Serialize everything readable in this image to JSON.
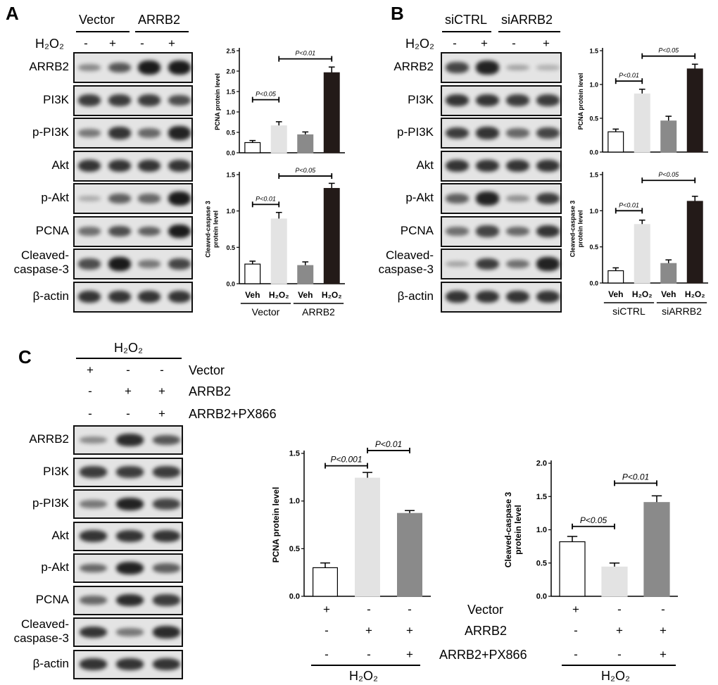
{
  "panels": {
    "A": {
      "letter": "A",
      "groups": [
        "Vector",
        "ARRB2"
      ],
      "treatment": "H₂O₂",
      "signs": [
        "-",
        "+",
        "-",
        "+"
      ],
      "blots": [
        {
          "label": "ARRB2",
          "intensity": [
            0.35,
            0.65,
            1.0,
            1.0
          ]
        },
        {
          "label": "PI3K",
          "intensity": [
            0.8,
            0.8,
            0.8,
            0.7
          ]
        },
        {
          "label": "p-PI3K",
          "intensity": [
            0.45,
            0.85,
            0.55,
            0.95
          ]
        },
        {
          "label": "Akt",
          "intensity": [
            0.85,
            0.85,
            0.85,
            0.85
          ]
        },
        {
          "label": "p-Akt",
          "intensity": [
            0.15,
            0.6,
            0.55,
            1.0
          ]
        },
        {
          "label": "PCNA",
          "intensity": [
            0.5,
            0.7,
            0.6,
            1.0
          ]
        },
        {
          "label": "Cleaved-\ncaspase-3",
          "intensity": [
            0.7,
            1.0,
            0.45,
            0.75
          ]
        },
        {
          "label": "β-actin",
          "intensity": [
            0.85,
            0.85,
            0.85,
            0.85
          ]
        }
      ]
    },
    "B": {
      "letter": "B",
      "groups": [
        "siCTRL",
        "siARRB2"
      ],
      "treatment": "H₂O₂",
      "signs": [
        "-",
        "+",
        "-",
        "+"
      ],
      "blots": [
        {
          "label": "ARRB2",
          "intensity": [
            0.75,
            0.95,
            0.2,
            0.12
          ]
        },
        {
          "label": "PI3K",
          "intensity": [
            0.85,
            0.85,
            0.8,
            0.8
          ]
        },
        {
          "label": "p-PI3K",
          "intensity": [
            0.8,
            0.85,
            0.55,
            0.75
          ]
        },
        {
          "label": "Akt",
          "intensity": [
            0.85,
            0.85,
            0.85,
            0.85
          ]
        },
        {
          "label": "p-Akt",
          "intensity": [
            0.6,
            0.95,
            0.3,
            0.8
          ]
        },
        {
          "label": "PCNA",
          "intensity": [
            0.5,
            0.75,
            0.55,
            0.85
          ]
        },
        {
          "label": "Cleaved-\ncaspase-3",
          "intensity": [
            0.2,
            0.8,
            0.5,
            0.95
          ]
        },
        {
          "label": "β-actin",
          "intensity": [
            0.85,
            0.85,
            0.85,
            0.85
          ]
        }
      ]
    },
    "C": {
      "letter": "C",
      "treatment": "H₂O₂",
      "rows": [
        {
          "label": "Vector",
          "signs": [
            "+",
            "-",
            "-"
          ]
        },
        {
          "label": "ARRB2",
          "signs": [
            "-",
            "+",
            "+"
          ]
        },
        {
          "label": "ARRB2+PX866",
          "signs": [
            "-",
            "-",
            "+"
          ]
        }
      ],
      "blots": [
        {
          "label": "ARRB2",
          "intensity": [
            0.35,
            0.9,
            0.65
          ]
        },
        {
          "label": "PI3K",
          "intensity": [
            0.8,
            0.8,
            0.8
          ]
        },
        {
          "label": "p-PI3K",
          "intensity": [
            0.45,
            0.95,
            0.75
          ]
        },
        {
          "label": "Akt",
          "intensity": [
            0.85,
            0.85,
            0.85
          ]
        },
        {
          "label": "p-Akt",
          "intensity": [
            0.55,
            0.95,
            0.6
          ]
        },
        {
          "label": "PCNA",
          "intensity": [
            0.55,
            0.9,
            0.8
          ]
        },
        {
          "label": "Cleaved-\ncaspase-3",
          "intensity": [
            0.85,
            0.45,
            0.9
          ]
        },
        {
          "label": "β-actin",
          "intensity": [
            0.85,
            0.85,
            0.85
          ]
        }
      ]
    }
  },
  "chart_data": [
    {
      "id": "A-PCNA",
      "type": "bar",
      "ylabel": "PCNA protein level",
      "ylim": [
        0,
        2.5
      ],
      "yticks": [
        "0.0",
        "0.5",
        "1.0",
        "1.5",
        "2.0",
        "2.5"
      ],
      "categories": [
        "Veh",
        "H₂O₂",
        "Veh",
        "H₂O₂"
      ],
      "values": [
        0.25,
        0.66,
        0.44,
        1.96
      ],
      "errors": [
        0.05,
        0.1,
        0.07,
        0.14
      ],
      "colors": [
        "#ffffff",
        "#e3e3e3",
        "#8a8a8a",
        "#231a18"
      ],
      "annotations": [
        {
          "text": "P<0.05",
          "from": 0,
          "to": 1,
          "y": 1.3
        },
        {
          "text": "P<0.01",
          "from": 1,
          "to": 3,
          "y": 2.3
        }
      ],
      "showXLabels": false
    },
    {
      "id": "A-Casp",
      "type": "bar",
      "ylabel": "Cleaved-caspase 3\nprotein level",
      "ylim": [
        0,
        1.5
      ],
      "yticks": [
        "0.0",
        "0.5",
        "1.0",
        "1.5"
      ],
      "categories": [
        "Veh",
        "H₂O₂",
        "Veh",
        "H₂O₂"
      ],
      "groups": [
        "Vector",
        "ARRB2"
      ],
      "values": [
        0.27,
        0.89,
        0.25,
        1.31
      ],
      "errors": [
        0.04,
        0.09,
        0.05,
        0.07
      ],
      "colors": [
        "#ffffff",
        "#e3e3e3",
        "#8a8a8a",
        "#231a18"
      ],
      "annotations": [
        {
          "text": "P<0.01",
          "from": 0,
          "to": 1,
          "y": 1.09
        },
        {
          "text": "P<0.05",
          "from": 1,
          "to": 3,
          "y": 1.48
        }
      ],
      "showXLabels": true
    },
    {
      "id": "B-PCNA",
      "type": "bar",
      "ylabel": "PCNA protein level",
      "ylim": [
        0,
        1.5
      ],
      "yticks": [
        "0.0",
        "0.5",
        "1.0",
        "1.5"
      ],
      "categories": [
        "Veh",
        "H₂O₂",
        "Veh",
        "H₂O₂"
      ],
      "values": [
        0.3,
        0.86,
        0.46,
        1.23
      ],
      "errors": [
        0.04,
        0.07,
        0.07,
        0.07
      ],
      "colors": [
        "#ffffff",
        "#e3e3e3",
        "#8a8a8a",
        "#231a18"
      ],
      "annotations": [
        {
          "text": "P<0.01",
          "from": 0,
          "to": 1,
          "y": 1.05
        },
        {
          "text": "P<0.05",
          "from": 1,
          "to": 3,
          "y": 1.42
        }
      ],
      "showXLabels": false
    },
    {
      "id": "B-Casp",
      "type": "bar",
      "ylabel": "Cleaved-caspase 3\nprotein level",
      "ylim": [
        0,
        1.5
      ],
      "yticks": [
        "0.0",
        "0.5",
        "1.0",
        "1.5"
      ],
      "categories": [
        "Veh",
        "H₂O₂",
        "Veh",
        "H₂O₂"
      ],
      "groups": [
        "siCTRL",
        "siARRB2"
      ],
      "values": [
        0.17,
        0.81,
        0.27,
        1.13
      ],
      "errors": [
        0.04,
        0.06,
        0.05,
        0.07
      ],
      "colors": [
        "#ffffff",
        "#e3e3e3",
        "#8a8a8a",
        "#231a18"
      ],
      "annotations": [
        {
          "text": "P<0.01",
          "from": 0,
          "to": 1,
          "y": 1.0
        },
        {
          "text": "P<0.05",
          "from": 1,
          "to": 3,
          "y": 1.42
        }
      ],
      "showXLabels": true
    },
    {
      "id": "C-PCNA",
      "type": "bar",
      "ylabel": "PCNA protein level",
      "ylim": [
        0,
        1.5
      ],
      "yticks": [
        "0.0",
        "0.5",
        "1.0",
        "1.5"
      ],
      "values": [
        0.3,
        1.24,
        0.87
      ],
      "errors": [
        0.05,
        0.06,
        0.03
      ],
      "colors": [
        "#ffffff",
        "#e3e3e3",
        "#8a8a8a"
      ],
      "annotations": [
        {
          "text": "P<0.001",
          "from": 0,
          "to": 1,
          "y": 1.37
        },
        {
          "text": "P<0.01",
          "from": 1,
          "to": 2,
          "y": 1.53
        }
      ]
    },
    {
      "id": "C-Casp",
      "type": "bar",
      "ylabel": "Cleaved-caspase 3\nprotein level",
      "ylim": [
        0,
        2.0
      ],
      "yticks": [
        "0.0",
        "0.5",
        "1.0",
        "1.5",
        "2.0"
      ],
      "values": [
        0.82,
        0.44,
        1.41
      ],
      "errors": [
        0.08,
        0.06,
        0.1
      ],
      "colors": [
        "#ffffff",
        "#e3e3e3",
        "#8a8a8a"
      ],
      "annotations": [
        {
          "text": "P<0.05",
          "from": 0,
          "to": 1,
          "y": 1.05
        },
        {
          "text": "P<0.01",
          "from": 1,
          "to": 2,
          "y": 1.7
        }
      ]
    }
  ],
  "c_axis": {
    "rows": [
      {
        "label": "Vector",
        "signs": [
          "+",
          "-",
          "-"
        ]
      },
      {
        "label": "ARRB2",
        "signs": [
          "-",
          "+",
          "+"
        ]
      },
      {
        "label": "ARRB2+PX866",
        "signs": [
          "-",
          "-",
          "+"
        ]
      }
    ],
    "treatment": "H₂O₂"
  }
}
